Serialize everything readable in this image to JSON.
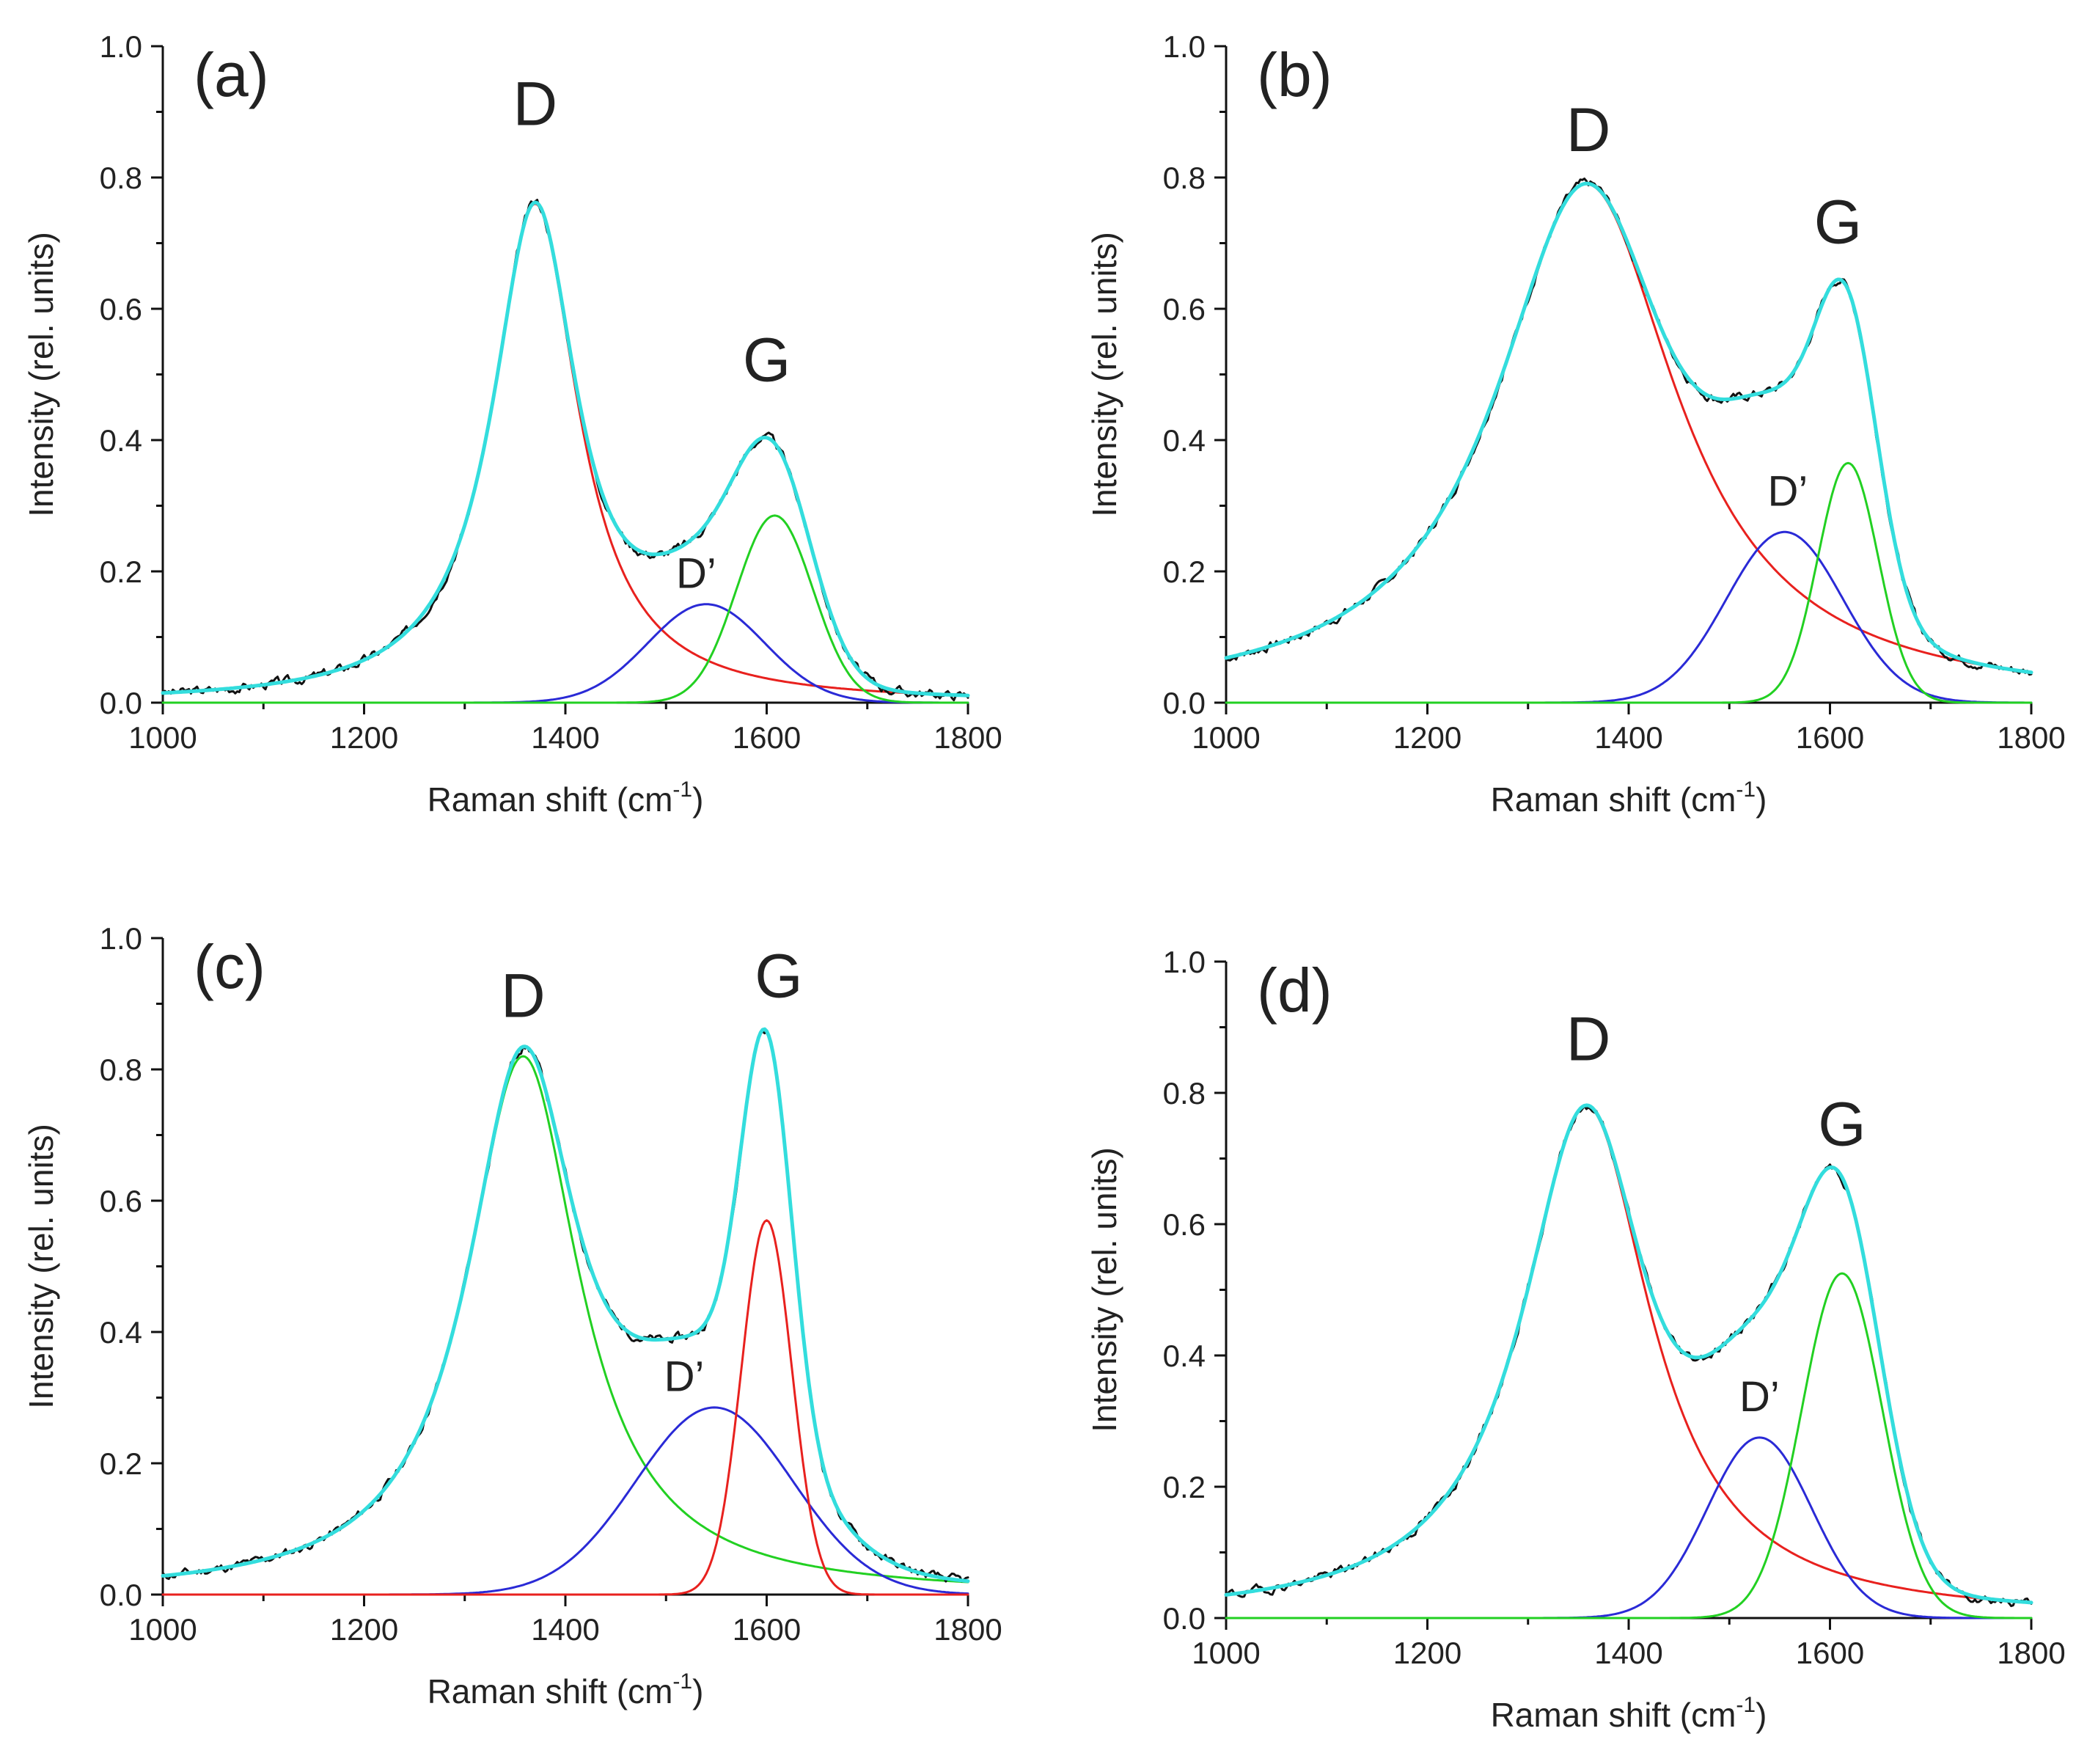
{
  "chart_data": [
    {
      "type": "line",
      "panel_label": "(a)",
      "xlabel": "Raman shift (cm",
      "xlabel_sup": "-1",
      "xlabel_end": ")",
      "ylabel": "Intensity (rel. units)",
      "xlim": [
        1000,
        1800
      ],
      "ylim": [
        0,
        1.0
      ],
      "xticks": [
        1000,
        1200,
        1400,
        1600,
        1800
      ],
      "yticks": [
        "0.0",
        "0.2",
        "0.4",
        "0.6",
        "0.8",
        "1.0"
      ],
      "peak_labels": [
        {
          "text": "D",
          "x": 1370,
          "y": 0.88,
          "size": "large"
        },
        {
          "text": "G",
          "x": 1600,
          "y": 0.49,
          "size": "large"
        },
        {
          "text": "D’",
          "x": 1530,
          "y": 0.175,
          "size": "small"
        }
      ],
      "components": [
        {
          "name": "D",
          "shape": "lorentz",
          "center": 1370,
          "width": 52,
          "amp": 0.76,
          "color": "#e8211e"
        },
        {
          "name": "D’",
          "shape": "gauss",
          "center": 1540,
          "width": 58,
          "amp": 0.15,
          "color": "#2a2ad6"
        },
        {
          "name": "G",
          "shape": "gauss",
          "center": 1608,
          "width": 38,
          "amp": 0.285,
          "color": "#22d022"
        }
      ],
      "fit_color": "#33dddd",
      "data_color": "#111111",
      "noise_seed": 3
    },
    {
      "type": "line",
      "panel_label": "(b)",
      "xlabel": "Raman shift (cm",
      "xlabel_sup": "-1",
      "xlabel_end": ")",
      "ylabel": "Intensity (rel. units)",
      "xlim": [
        1000,
        1800
      ],
      "ylim": [
        0,
        1.0
      ],
      "xticks": [
        1000,
        1200,
        1400,
        1600,
        1800
      ],
      "yticks": [
        "0.0",
        "0.2",
        "0.4",
        "0.6",
        "0.8",
        "1.0"
      ],
      "peak_labels": [
        {
          "text": "D",
          "x": 1360,
          "y": 0.84,
          "size": "large"
        },
        {
          "text": "G",
          "x": 1608,
          "y": 0.7,
          "size": "large"
        },
        {
          "text": "D’",
          "x": 1558,
          "y": 0.3,
          "size": "small"
        }
      ],
      "components": [
        {
          "name": "D",
          "shape": "lorentz",
          "center": 1358,
          "width": 110,
          "amp": 0.79,
          "color": "#e8211e"
        },
        {
          "name": "D’",
          "shape": "gauss",
          "center": 1555,
          "width": 58,
          "amp": 0.26,
          "color": "#2a2ad6"
        },
        {
          "name": "G",
          "shape": "gauss",
          "center": 1618,
          "width": 30,
          "amp": 0.365,
          "color": "#22d022"
        }
      ],
      "fit_color": "#33dddd",
      "data_color": "#111111",
      "noise_seed": 7
    },
    {
      "type": "line",
      "panel_label": "(c)",
      "xlabel": "Raman shift (cm",
      "xlabel_sup": "-1",
      "xlabel_end": ")",
      "ylabel": "Intensity (rel. units)",
      "xlim": [
        1000,
        1800
      ],
      "ylim": [
        0,
        1.0
      ],
      "xticks": [
        1000,
        1200,
        1400,
        1600,
        1800
      ],
      "yticks": [
        "0.0",
        "0.2",
        "0.4",
        "0.6",
        "0.8",
        "1.0"
      ],
      "peak_labels": [
        {
          "text": "D",
          "x": 1358,
          "y": 0.88,
          "size": "large"
        },
        {
          "text": "G",
          "x": 1612,
          "y": 0.91,
          "size": "large"
        },
        {
          "text": "D’",
          "x": 1518,
          "y": 0.31,
          "size": "small"
        }
      ],
      "components": [
        {
          "name": "D",
          "shape": "lorentz",
          "center": 1358,
          "width": 68,
          "amp": 0.82,
          "color": "#22d022"
        },
        {
          "name": "D’",
          "shape": "gauss",
          "center": 1548,
          "width": 78,
          "amp": 0.285,
          "color": "#2a2ad6"
        },
        {
          "name": "G",
          "shape": "gauss",
          "center": 1600,
          "width": 25,
          "amp": 0.57,
          "color": "#e8211e"
        }
      ],
      "fit_color": "#33dddd",
      "data_color": "#111111",
      "noise_seed": 11
    },
    {
      "type": "line",
      "panel_label": "(d)",
      "xlabel": "Raman shift (cm",
      "xlabel_sup": "-1",
      "xlabel_end": ")",
      "ylabel": "Intensity (rel. units)",
      "xlim": [
        1000,
        1800
      ],
      "ylim": [
        0,
        1.0
      ],
      "xticks": [
        1000,
        1200,
        1400,
        1600,
        1800
      ],
      "yticks": [
        "0.0",
        "0.2",
        "0.4",
        "0.6",
        "0.8",
        "1.0"
      ],
      "peak_labels": [
        {
          "text": "D",
          "x": 1360,
          "y": 0.85,
          "size": "large"
        },
        {
          "text": "G",
          "x": 1612,
          "y": 0.72,
          "size": "large"
        },
        {
          "text": "D’",
          "x": 1530,
          "y": 0.315,
          "size": "small"
        }
      ],
      "components": [
        {
          "name": "D",
          "shape": "lorentz",
          "center": 1358,
          "width": 78,
          "amp": 0.78,
          "color": "#e8211e"
        },
        {
          "name": "D’",
          "shape": "gauss",
          "center": 1530,
          "width": 52,
          "amp": 0.275,
          "color": "#2a2ad6"
        },
        {
          "name": "G",
          "shape": "gauss",
          "center": 1612,
          "width": 40,
          "amp": 0.525,
          "color": "#22d022"
        }
      ],
      "fit_color": "#33dddd",
      "data_color": "#111111",
      "noise_seed": 19
    }
  ]
}
